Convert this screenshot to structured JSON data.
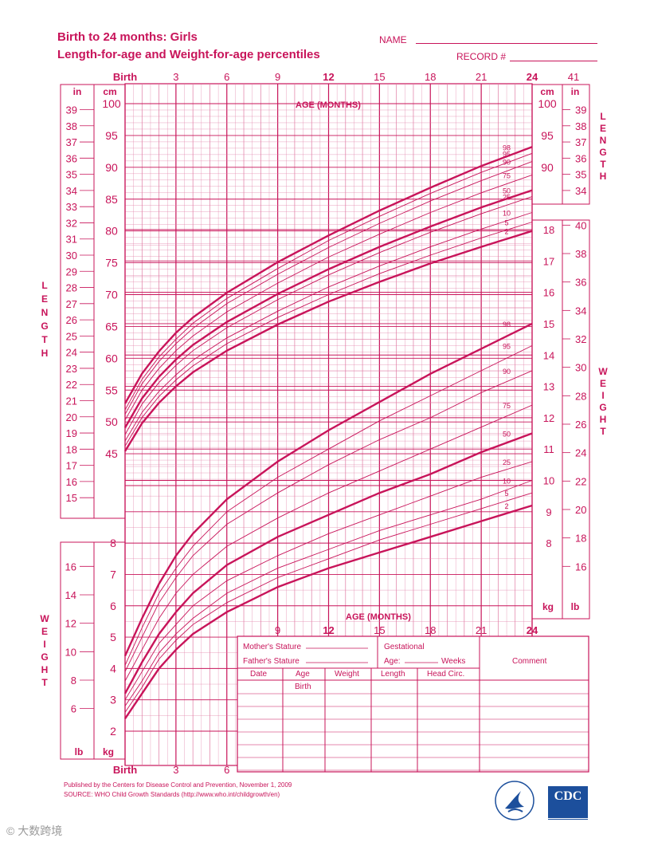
{
  "header": {
    "title_line1": "Birth to 24 months: Girls",
    "title_line2": "Length-for-age and Weight-for-age percentiles",
    "name_label": "NAME",
    "record_label": "RECORD #"
  },
  "footer": {
    "published": "Published by the Centers for Disease Control and Prevention, November 1, 2009",
    "source": "SOURCE:  WHO Child Growth Standards (http://www.who.int/childgrowth/en)",
    "cdc_logo": "CDC",
    "watermark": "© 大数跨境"
  },
  "record_table": {
    "mothers_stature": "Mother's Stature",
    "fathers_stature": "Father's Stature",
    "gestational": "Gestational",
    "age": "Age:",
    "weeks": "Weeks",
    "comment": "Comment",
    "columns": [
      "Date",
      "Age",
      "Weight",
      "Length",
      "Head  Circ."
    ],
    "birth": "Birth"
  },
  "colors": {
    "accent": "#c8145a",
    "grid": "#e07aa3"
  },
  "chart_data": {
    "type": "line",
    "title": "Length-for-age and Weight-for-age percentiles",
    "x_axis": {
      "label": "AGE (MONTHS)",
      "range": [
        0,
        24
      ],
      "tick_labels": [
        "Birth",
        "3",
        "6",
        "9",
        "12",
        "15",
        "18",
        "21",
        "24"
      ],
      "tick_values": [
        0,
        3,
        6,
        9,
        12,
        15,
        18,
        21,
        24
      ],
      "bottom_tick_labels": [
        "Birth",
        "3",
        "6"
      ],
      "extra_label": "41"
    },
    "length": {
      "axis_label": "LENGTH",
      "unit_cm": "cm",
      "unit_in": "in",
      "cm_range": [
        40,
        100
      ],
      "cm_ticks": [
        "45",
        "50",
        "55",
        "60",
        "65",
        "70",
        "75",
        "80",
        "85",
        "90",
        "95",
        "100"
      ],
      "cm_right_ticks": [
        "90",
        "95",
        "100"
      ],
      "in_ticks": [
        "15",
        "16",
        "17",
        "18",
        "19",
        "20",
        "21",
        "22",
        "23",
        "24",
        "25",
        "26",
        "27",
        "28",
        "29",
        "30",
        "31",
        "32",
        "33",
        "34",
        "35",
        "36",
        "37",
        "38",
        "39"
      ],
      "in_right_ticks": [
        "34",
        "35",
        "36",
        "37",
        "38",
        "39"
      ],
      "x": [
        0,
        1,
        2,
        3,
        4,
        6,
        9,
        12,
        15,
        18,
        21,
        24
      ],
      "series": [
        {
          "name": "2",
          "values": [
            45.4,
            49.8,
            53.0,
            55.6,
            57.8,
            61.2,
            65.3,
            68.9,
            72.0,
            74.9,
            77.5,
            80.0
          ]
        },
        {
          "name": "5",
          "values": [
            46.2,
            50.7,
            54.0,
            56.6,
            58.8,
            62.3,
            66.4,
            70.0,
            73.3,
            76.2,
            78.9,
            81.4
          ]
        },
        {
          "name": "10",
          "values": [
            47.0,
            51.5,
            54.8,
            57.4,
            59.7,
            63.2,
            67.4,
            71.2,
            74.5,
            77.5,
            80.3,
            82.9
          ]
        },
        {
          "name": "25",
          "values": [
            48.0,
            52.8,
            56.2,
            58.9,
            61.2,
            64.8,
            69.2,
            73.1,
            76.6,
            79.8,
            82.7,
            85.4
          ]
        },
        {
          "name": "50",
          "values": [
            49.1,
            53.7,
            57.1,
            59.8,
            62.1,
            65.7,
            70.1,
            74.0,
            77.5,
            80.7,
            83.7,
            86.4
          ]
        },
        {
          "name": "75",
          "values": [
            50.3,
            55.0,
            58.4,
            61.2,
            63.5,
            67.3,
            71.8,
            75.9,
            79.5,
            82.9,
            86.0,
            88.8
          ]
        },
        {
          "name": "90",
          "values": [
            51.2,
            56.0,
            59.5,
            62.3,
            64.7,
            68.6,
            73.2,
            77.4,
            81.2,
            84.7,
            87.9,
            90.9
          ]
        },
        {
          "name": "95",
          "values": [
            51.9,
            56.7,
            60.2,
            63.0,
            65.5,
            69.4,
            74.1,
            78.5,
            82.3,
            85.9,
            89.2,
            92.2
          ]
        },
        {
          "name": "98",
          "values": [
            52.9,
            57.6,
            61.1,
            64.0,
            66.4,
            70.3,
            75.1,
            79.3,
            83.2,
            86.8,
            90.2,
            93.2
          ]
        }
      ]
    },
    "weight": {
      "axis_label": "WEIGHT",
      "unit_kg": "kg",
      "unit_lb": "lb",
      "kg_range": [
        2,
        18
      ],
      "kg_left_ticks": [
        "2",
        "3",
        "4",
        "5",
        "6",
        "7",
        "8"
      ],
      "kg_right_ticks": [
        "8",
        "9",
        "10",
        "11",
        "12",
        "13",
        "14",
        "15",
        "16",
        "17",
        "18"
      ],
      "lb_left_ticks": [
        "6",
        "8",
        "10",
        "12",
        "14",
        "16"
      ],
      "lb_right_ticks": [
        "16",
        "18",
        "20",
        "22",
        "24",
        "26",
        "28",
        "30",
        "32",
        "34",
        "36",
        "38",
        "40"
      ],
      "x": [
        0,
        1,
        2,
        3,
        4,
        6,
        9,
        12,
        15,
        18,
        21,
        24
      ],
      "series": [
        {
          "name": "2",
          "values": [
            2.4,
            3.2,
            4.0,
            4.6,
            5.1,
            5.8,
            6.6,
            7.2,
            7.7,
            8.2,
            8.7,
            9.2
          ]
        },
        {
          "name": "5",
          "values": [
            2.6,
            3.4,
            4.3,
            4.9,
            5.4,
            6.1,
            6.9,
            7.5,
            8.1,
            8.6,
            9.1,
            9.6
          ]
        },
        {
          "name": "10",
          "values": [
            2.8,
            3.6,
            4.5,
            5.1,
            5.6,
            6.4,
            7.2,
            7.8,
            8.4,
            8.9,
            9.4,
            10.0
          ]
        },
        {
          "name": "25",
          "values": [
            3.0,
            3.9,
            4.8,
            5.4,
            6.0,
            6.8,
            7.6,
            8.3,
            8.9,
            9.5,
            10.1,
            10.6
          ]
        },
        {
          "name": "50",
          "values": [
            3.2,
            4.2,
            5.1,
            5.8,
            6.4,
            7.3,
            8.2,
            8.9,
            9.6,
            10.2,
            10.9,
            11.5
          ]
        },
        {
          "name": "75",
          "values": [
            3.6,
            4.6,
            5.6,
            6.4,
            7.0,
            7.9,
            8.8,
            9.6,
            10.3,
            11.0,
            11.7,
            12.4
          ]
        },
        {
          "name": "90",
          "values": [
            3.9,
            5.0,
            6.1,
            6.9,
            7.6,
            8.6,
            9.6,
            10.5,
            11.3,
            12.0,
            12.8,
            13.5
          ]
        },
        {
          "name": "95",
          "values": [
            4.1,
            5.3,
            6.4,
            7.2,
            7.9,
            9.0,
            10.1,
            11.0,
            11.9,
            12.7,
            13.5,
            14.3
          ]
        },
        {
          "name": "98",
          "values": [
            4.4,
            5.6,
            6.7,
            7.6,
            8.3,
            9.4,
            10.6,
            11.6,
            12.5,
            13.4,
            14.2,
            15.0
          ]
        }
      ]
    },
    "grid": true
  }
}
